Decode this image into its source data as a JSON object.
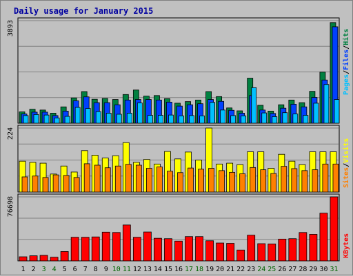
{
  "title": "Daily usage for January 2015",
  "colors": {
    "background": "#c0c0c0",
    "plot_bg": "#c0c0c0",
    "title": "#0000a0",
    "hits": "#008040",
    "files": "#0040ff",
    "pages": "#00c0ff",
    "visits": "#ffff00",
    "sites": "#ff8000",
    "kbytes": "#ff0000",
    "weekend_label": "#006400",
    "weekday_label": "#000000",
    "grid": "#808080"
  },
  "legend": {
    "top": [
      {
        "label": "Pages",
        "color": "#00c0ff"
      },
      {
        "label": "Files",
        "color": "#0040ff"
      },
      {
        "label": "Hits",
        "color": "#008040"
      }
    ],
    "middle": [
      {
        "label": "Sites",
        "color": "#ff8000"
      },
      {
        "label": "Visits",
        "color": "#ffff00"
      }
    ],
    "bottom": [
      {
        "label": "KBytes",
        "color": "#ff0000"
      }
    ]
  },
  "chart_data": [
    {
      "type": "bar",
      "panel": "top",
      "y_max_label": "3893",
      "ylim": [
        0,
        3893
      ],
      "categories": [
        "1",
        "2",
        "3",
        "4",
        "5",
        "6",
        "7",
        "8",
        "9",
        "10",
        "11",
        "12",
        "13",
        "14",
        "15",
        "16",
        "17",
        "18",
        "19",
        "20",
        "21",
        "22",
        "23",
        "24",
        "25",
        "26",
        "27",
        "28",
        "29",
        "30",
        "31"
      ],
      "weekend": [
        "3",
        "4",
        "10",
        "11",
        "17",
        "18",
        "24",
        "25",
        "31"
      ],
      "series": [
        {
          "name": "Hits",
          "values": [
            430,
            530,
            500,
            380,
            620,
            960,
            1200,
            910,
            940,
            900,
            1090,
            1260,
            1030,
            1050,
            930,
            760,
            820,
            880,
            1200,
            1010,
            580,
            470,
            1710,
            680,
            460,
            700,
            880,
            780,
            1210,
            1940,
            3820
          ]
        },
        {
          "name": "Files",
          "values": [
            350,
            420,
            420,
            290,
            460,
            850,
            1000,
            780,
            780,
            700,
            880,
            900,
            900,
            880,
            800,
            650,
            700,
            740,
            900,
            830,
            490,
            380,
            1050,
            500,
            370,
            570,
            720,
            620,
            980,
            1640,
            3660
          ]
        },
        {
          "name": "Pages",
          "values": [
            290,
            330,
            310,
            200,
            260,
            600,
            560,
            440,
            380,
            340,
            380,
            770,
            300,
            300,
            310,
            280,
            290,
            280,
            790,
            500,
            290,
            280,
            1350,
            390,
            250,
            400,
            350,
            300,
            760,
            1470,
            900
          ]
        }
      ]
    },
    {
      "type": "bar",
      "panel": "middle",
      "y_max_label": "224",
      "ylim": [
        0,
        224
      ],
      "categories": [
        "1",
        "2",
        "3",
        "4",
        "5",
        "6",
        "7",
        "8",
        "9",
        "10",
        "11",
        "12",
        "13",
        "14",
        "15",
        "16",
        "17",
        "18",
        "19",
        "20",
        "21",
        "22",
        "23",
        "24",
        "25",
        "26",
        "27",
        "28",
        "29",
        "30",
        "31"
      ],
      "series": [
        {
          "name": "Visits",
          "values": [
            108,
            104,
            101,
            63,
            91,
            70,
            145,
            129,
            119,
            127,
            173,
            104,
            114,
            98,
            142,
            116,
            140,
            112,
            224,
            98,
            101,
            96,
            141,
            141,
            83,
            132,
            108,
            96,
            141,
            141,
            141
          ]
        },
        {
          "name": "Sites",
          "values": [
            53,
            56,
            51,
            60,
            58,
            51,
            99,
            94,
            85,
            91,
            97,
            94,
            83,
            88,
            73,
            68,
            84,
            80,
            83,
            75,
            69,
            64,
            86,
            78,
            65,
            90,
            82,
            75,
            78,
            98,
            98
          ]
        }
      ]
    },
    {
      "type": "bar",
      "panel": "bottom",
      "y_max_label": "76698",
      "ylim": [
        0,
        76698
      ],
      "categories": [
        "1",
        "2",
        "3",
        "4",
        "5",
        "6",
        "7",
        "8",
        "9",
        "10",
        "11",
        "12",
        "13",
        "14",
        "15",
        "16",
        "17",
        "18",
        "19",
        "20",
        "21",
        "22",
        "23",
        "24",
        "25",
        "26",
        "27",
        "28",
        "29",
        "30",
        "31"
      ],
      "series": [
        {
          "name": "KBytes",
          "values": [
            4900,
            6100,
            6600,
            4400,
            11200,
            28300,
            28300,
            28700,
            34400,
            34000,
            43000,
            28300,
            34600,
            27100,
            26600,
            23700,
            29100,
            29100,
            24100,
            21400,
            21000,
            13000,
            30800,
            20600,
            20300,
            26100,
            26600,
            34000,
            31800,
            57200,
            76698
          ]
        }
      ]
    }
  ]
}
